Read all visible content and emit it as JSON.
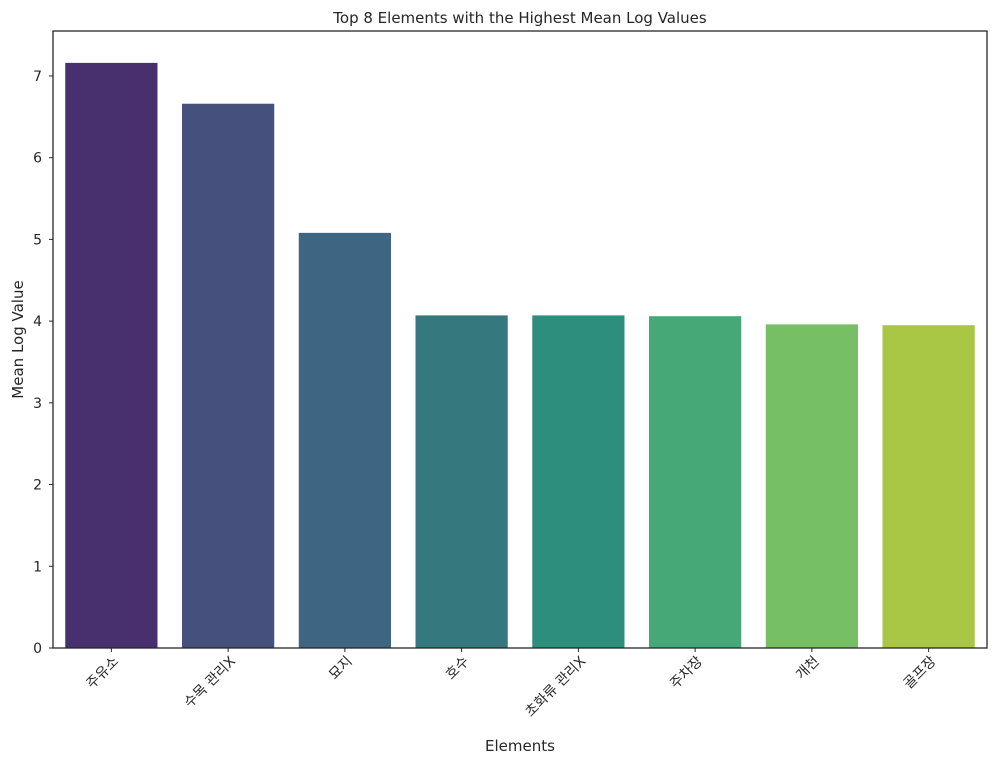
{
  "chart_data": {
    "type": "bar",
    "title": "Top 8 Elements with the Highest Mean Log Values",
    "xlabel": "Elements",
    "ylabel": "Mean Log Value",
    "categories": [
      "주유소",
      "수목 관리X",
      "묘지",
      "호수",
      "초화류 관리X",
      "주차장",
      "개천",
      "골프장"
    ],
    "values": [
      7.16,
      6.66,
      5.08,
      4.07,
      4.07,
      4.06,
      3.96,
      3.95
    ],
    "colors": [
      "#482f6e",
      "#46507d",
      "#3e6682",
      "#35787e",
      "#2e8e7d",
      "#46a877",
      "#76bf64",
      "#a9c744"
    ],
    "ylim": [
      0,
      7.55
    ],
    "yticks": [
      0,
      1,
      2,
      3,
      4,
      5,
      6,
      7
    ],
    "grid": false
  }
}
